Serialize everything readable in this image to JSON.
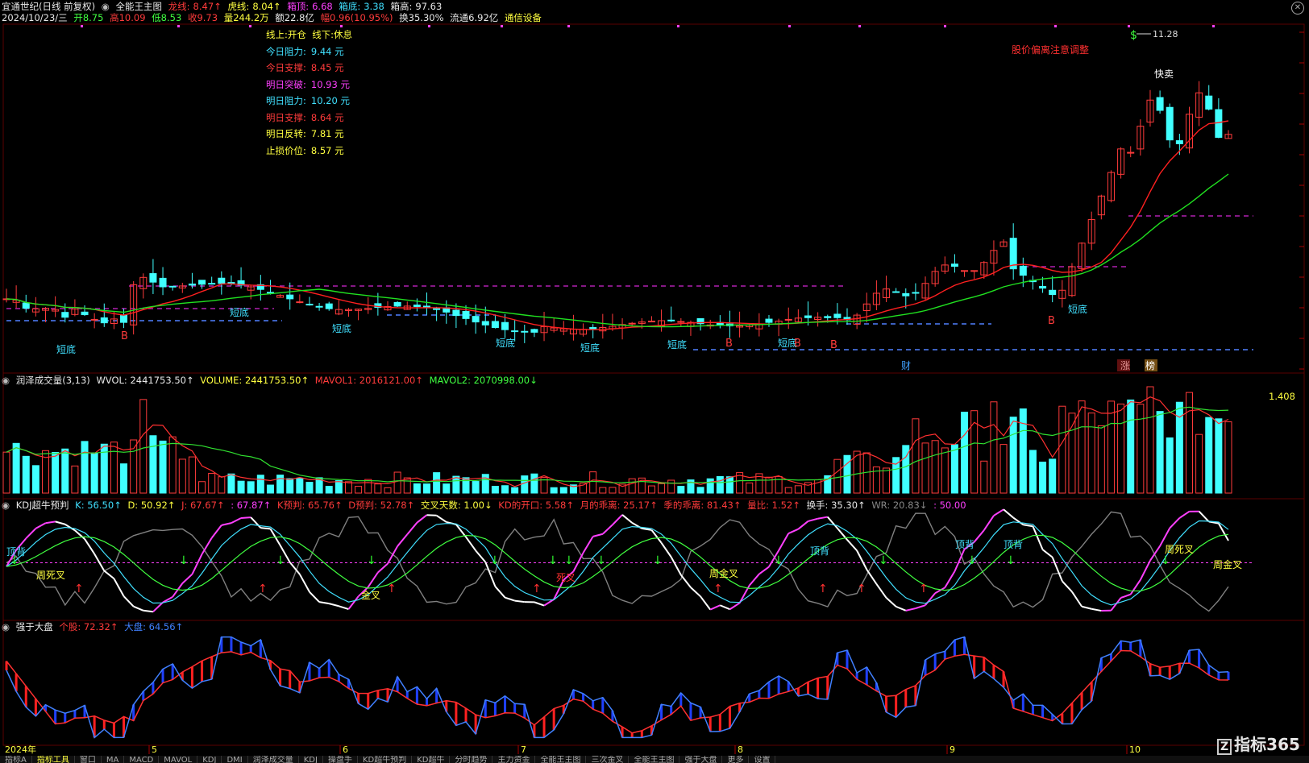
{
  "header": {
    "title": "宜通世纪(日线 前复权)",
    "main_chart": "全能王主图",
    "dragon_label": "龙线:",
    "dragon_value": "8.47↑",
    "tiger_label": "虎线:",
    "tiger_value": "8.04↑",
    "boxtop_label": "箱顶:",
    "boxtop_value": "6.68",
    "boxbot_label": "箱底:",
    "boxbot_value": "3.38",
    "boxhigh_label": "箱高:",
    "boxhigh_value": "97.63"
  },
  "quote": {
    "date": "2024/10/23/三",
    "open": "开8.75",
    "high": "高10.09",
    "low": "低8.53",
    "close": "收9.73",
    "volume": "量244.2万",
    "amount": "额22.8亿",
    "change": "幅0.96(10.95%)",
    "turnover": "换35.30%",
    "float": "流通6.92亿",
    "industry": "通信设备"
  },
  "info_box": {
    "line1_a": "线上:开仓",
    "line1_b": "线下:休息",
    "items": [
      {
        "label": "今日阻力:",
        "value": "9.44 元",
        "color": "#40e0ff"
      },
      {
        "label": "今日支撑:",
        "value": "8.45 元",
        "color": "#ff3b3b"
      },
      {
        "label": "明日突破:",
        "value": "10.93 元",
        "color": "#ff40ff"
      },
      {
        "label": "明日阻力:",
        "value": "10.20 元",
        "color": "#40e0ff"
      },
      {
        "label": "明日支撑:",
        "value": "8.64 元",
        "color": "#ff3b3b"
      },
      {
        "label": "明日反转:",
        "value": "7.81 元",
        "color": "#ffff40"
      },
      {
        "label": "止损价位:",
        "value": "8.57 元",
        "color": "#ffff40"
      }
    ]
  },
  "annotations": {
    "deviation": "股价偏离注意调整",
    "quick_sell": "快卖",
    "peak": "11.28",
    "short_bottom": "短底",
    "b": "B",
    "finance": "财",
    "limit": "涨",
    "rank": "榜",
    "dollar": "$"
  },
  "volume_panel": {
    "name": "润泽成交量(3,13)",
    "wvol": "WVOL: 2441753.50↑",
    "volume": "VOLUME: 2441753.50↑",
    "mavol1": "MAVOL1: 2016121.00↑",
    "mavol2": "MAVOL2: 2070998.00↓",
    "max_label": "1.408"
  },
  "kdj_panel": {
    "name": "KDJ超牛预判",
    "k": "K: 56.50↑",
    "d": "D: 50.92↑",
    "j": "J: 67.67↑",
    "j2": ": 67.87↑",
    "kpred": "K预判: 65.76↑",
    "dpred": "D预判: 52.78↑",
    "cross_days": "交叉天数: 1.00↓",
    "kd_gap": "KD的开口: 5.58↑",
    "month_dev": "月的乖离: 25.17↑",
    "season_dev": "季的乖离: 81.43↑",
    "vol_ratio": "量比: 1.52↑",
    "turnover": "换手: 35.30↑",
    "wr": "WR: 20.83↓",
    "fifty": ": 50.00",
    "labels": {
      "top_div": "顶背",
      "week_dead": "周死叉",
      "week_gold": "周金叉",
      "gold": "金叉",
      "dead": "死叉"
    }
  },
  "strong_panel": {
    "name": "强于大盘",
    "stock": "个股: 72.32↑",
    "market": "大盘: 64.56↑"
  },
  "x_axis": {
    "year": "2024年",
    "months": [
      {
        "label": "5",
        "x": 185
      },
      {
        "label": "6",
        "x": 422
      },
      {
        "label": "7",
        "x": 643
      },
      {
        "label": "8",
        "x": 912
      },
      {
        "label": "9",
        "x": 1175
      },
      {
        "label": "10",
        "x": 1398
      }
    ]
  },
  "bottom_tabs": [
    "指标A",
    "指标工具",
    "窗口",
    "MA",
    "MACD",
    "MAVOL",
    "KDJ",
    "DMI",
    "润泽成交量",
    "KDJ",
    "操盘手",
    "KD超牛预判",
    "KD超牛",
    "分时趋势",
    "主力资金",
    "全能王主图",
    "三次金叉",
    "全能王主图",
    "强于大盘",
    "更多",
    "设置"
  ],
  "logo": "指标365",
  "colors": {
    "up": "#ff3b3b",
    "down": "#40ffff",
    "ma_red": "#ff2020",
    "ma_green": "#20e020"
  }
}
